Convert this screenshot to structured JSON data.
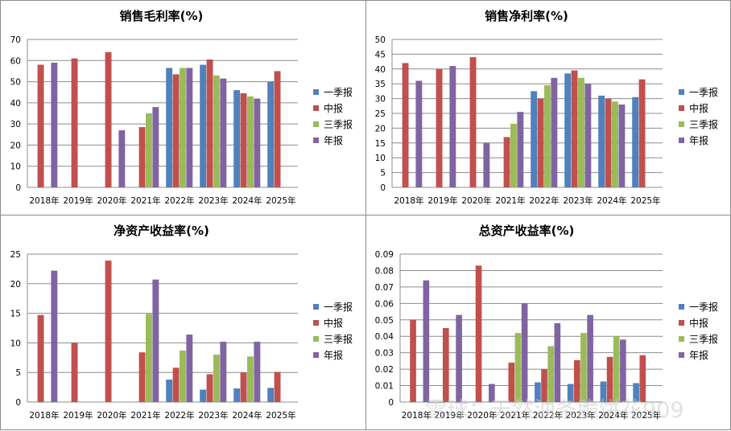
{
  "colors": {
    "一季报": "#4f81bd",
    "中报": "#c0504d",
    "三季报": "#9bbb59",
    "年报": "#8064a2",
    "grid": "#8c8c8c"
  },
  "watermark": "雪球：天然油条脆饼花909",
  "chart_data": [
    {
      "type": "bar",
      "title": "销售毛利率(%)",
      "categories": [
        "2018年",
        "2019年",
        "2020年",
        "2021年",
        "2022年",
        "2023年",
        "2024年",
        "2025年"
      ],
      "ylim": [
        0,
        70
      ],
      "yticks": [
        0,
        10,
        20,
        30,
        40,
        50,
        60,
        70
      ],
      "ytick_labels": [
        "0",
        "10",
        "20",
        "30",
        "40",
        "50",
        "60",
        "70"
      ],
      "legend_position": "right",
      "series": [
        {
          "name": "一季报",
          "values": [
            null,
            null,
            null,
            null,
            56.5,
            58.0,
            46.0,
            50.0
          ]
        },
        {
          "name": "中报",
          "values": [
            58.0,
            61.0,
            64.0,
            28.5,
            53.5,
            60.5,
            44.5,
            55.0
          ]
        },
        {
          "name": "三季报",
          "values": [
            null,
            null,
            null,
            35.0,
            56.5,
            53.0,
            43.0,
            null
          ]
        },
        {
          "name": "年报",
          "values": [
            59.0,
            null,
            27.0,
            38.0,
            56.5,
            51.5,
            42.0,
            null
          ]
        }
      ]
    },
    {
      "type": "bar",
      "title": "销售净利率(%)",
      "categories": [
        "2018年",
        "2019年",
        "2020年",
        "2021年",
        "2022年",
        "2023年",
        "2024年",
        "2025年"
      ],
      "ylim": [
        0,
        50
      ],
      "yticks": [
        0,
        5,
        10,
        15,
        20,
        25,
        30,
        35,
        40,
        45,
        50
      ],
      "ytick_labels": [
        "0",
        "5",
        "10",
        "15",
        "20",
        "25",
        "30",
        "35",
        "40",
        "45",
        "50"
      ],
      "legend_position": "right",
      "series": [
        {
          "name": "一季报",
          "values": [
            null,
            null,
            null,
            null,
            32.5,
            38.5,
            31.0,
            30.5
          ]
        },
        {
          "name": "中报",
          "values": [
            42.0,
            40.0,
            44.0,
            17.0,
            30.0,
            39.5,
            30.0,
            36.5
          ]
        },
        {
          "name": "三季报",
          "values": [
            null,
            null,
            null,
            21.5,
            34.5,
            37.0,
            29.0,
            null
          ]
        },
        {
          "name": "年报",
          "values": [
            36.0,
            41.0,
            15.0,
            25.5,
            37.0,
            35.0,
            28.0,
            null
          ]
        }
      ]
    },
    {
      "type": "bar",
      "title": "净资产收益率(%)",
      "categories": [
        "2018年",
        "2019年",
        "2020年",
        "2021年",
        "2022年",
        "2023年",
        "2024年",
        "2025年"
      ],
      "ylim": [
        0,
        25
      ],
      "yticks": [
        0,
        5,
        10,
        15,
        20,
        25
      ],
      "ytick_labels": [
        "0",
        "5",
        "10",
        "15",
        "20",
        "25"
      ],
      "legend_position": "right",
      "series": [
        {
          "name": "一季报",
          "values": [
            null,
            null,
            null,
            null,
            3.8,
            2.1,
            2.3,
            2.4
          ]
        },
        {
          "name": "中报",
          "values": [
            14.7,
            10.0,
            23.9,
            8.4,
            5.8,
            4.7,
            5.0,
            5.1
          ]
        },
        {
          "name": "三季报",
          "values": [
            null,
            null,
            null,
            14.9,
            8.7,
            8.0,
            7.7,
            null
          ]
        },
        {
          "name": "年报",
          "values": [
            22.2,
            null,
            null,
            20.7,
            11.4,
            10.2,
            10.2,
            null
          ]
        }
      ]
    },
    {
      "type": "bar",
      "title": "总资产收益率(%)",
      "categories": [
        "2018年",
        "2019年",
        "2020年",
        "2021年",
        "2022年",
        "2023年",
        "2024年",
        "2025年"
      ],
      "ylim": [
        0,
        0.09
      ],
      "yticks": [
        0,
        0.01,
        0.02,
        0.03,
        0.04,
        0.05,
        0.06,
        0.07,
        0.08,
        0.09
      ],
      "ytick_labels": [
        "0",
        "0.01",
        "0.02",
        "0.03",
        "0.04",
        "0.05",
        "0.06",
        "0.07",
        "0.08",
        "0.09"
      ],
      "legend_position": "right",
      "series": [
        {
          "name": "一季报",
          "values": [
            null,
            null,
            null,
            null,
            0.012,
            0.011,
            0.0125,
            0.0115
          ]
        },
        {
          "name": "中报",
          "values": [
            0.05,
            0.045,
            0.083,
            0.024,
            0.02,
            0.0255,
            0.0275,
            0.0285
          ]
        },
        {
          "name": "三季报",
          "values": [
            null,
            null,
            null,
            0.042,
            0.034,
            0.042,
            0.04,
            null
          ]
        },
        {
          "name": "年报",
          "values": [
            0.074,
            0.053,
            0.011,
            0.06,
            0.048,
            0.053,
            0.038,
            null
          ]
        }
      ]
    }
  ]
}
